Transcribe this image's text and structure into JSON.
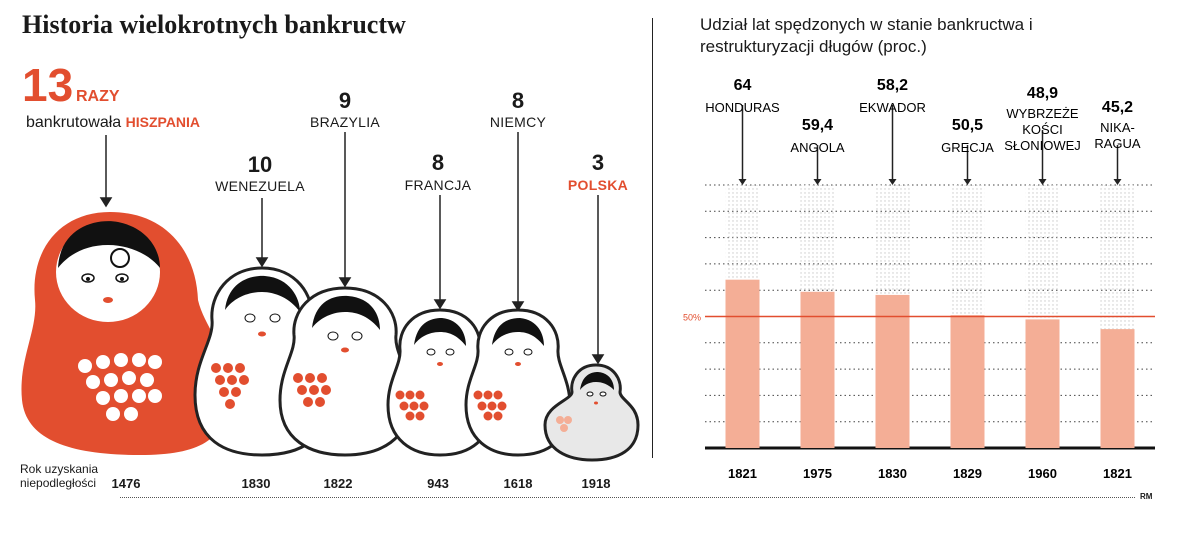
{
  "left": {
    "title": "Historia wielokrotnych bankructw",
    "hero": {
      "count": "13",
      "unit": "RAZY",
      "text": "bankrutowała",
      "country": "HISZPANIA"
    },
    "dolls": [
      {
        "count": "10",
        "name": "WENEZUELA"
      },
      {
        "count": "9",
        "name": "BRAZYLIA"
      },
      {
        "count": "8",
        "name": "FRANCJA"
      },
      {
        "count": "8",
        "name": "NIEMCY"
      },
      {
        "count": "3",
        "name": "POLSKA"
      }
    ],
    "years_label": "Rok uzyskania niepodległości",
    "years": [
      "1476",
      "1830",
      "1822",
      "943",
      "1618",
      "1918"
    ]
  },
  "right": {
    "title": "Udział lat spędzonych w stanie bankructwa i restrukturyzacji długów (proc.)",
    "ref_label": "50%",
    "credit": "RM"
  },
  "colors": {
    "accent": "#e24e2f",
    "bar": "#f4ae96",
    "grid": "#444444"
  },
  "chart_data": [
    {
      "type": "bar",
      "title": "Historia wielokrotnych bankructw",
      "categories": [
        "HISZPANIA",
        "WENEZUELA",
        "BRAZYLIA",
        "FRANCJA",
        "NIEMCY",
        "POLSKA"
      ],
      "values": [
        13,
        10,
        9,
        8,
        8,
        3
      ],
      "years": [
        "1476",
        "1830",
        "1822",
        "943",
        "1618",
        "1918"
      ],
      "xlabel": "Rok uzyskania niepodległości"
    },
    {
      "type": "bar",
      "title": "Udział lat spędzonych w stanie bankructwa i restrukturyzacji długów (proc.)",
      "categories": [
        "HONDURAS",
        "ANGOLA",
        "EKWADOR",
        "GRECJA",
        "WYBRZEŻE KOŚCI SŁONIOWEJ",
        "NIKA-RAGUA"
      ],
      "values": [
        64,
        59.4,
        58.2,
        50.5,
        48.9,
        45.2
      ],
      "value_labels": [
        "64",
        "59,4",
        "58,2",
        "50,5",
        "48,9",
        "45,2"
      ],
      "years": [
        "1821",
        "1975",
        "1830",
        "1829",
        "1960",
        "1821"
      ],
      "ylim": [
        0,
        100
      ],
      "reference_line": 50
    }
  ]
}
